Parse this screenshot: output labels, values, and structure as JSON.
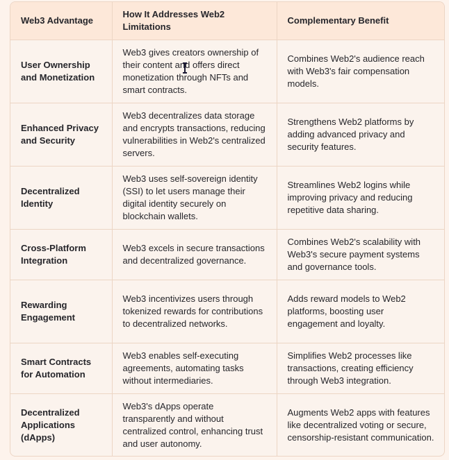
{
  "table": {
    "headers": [
      "Web3 Advantage",
      "How It Addresses Web2 Limitations",
      "Complementary Benefit"
    ],
    "rows": [
      {
        "advantage": "User Ownership and Monetization",
        "addresses": "Web3 gives creators ownership of their content and offers direct monetization through NFTs and smart contracts.",
        "benefit": "Combines Web2's audience reach with Web3's fair compensation models."
      },
      {
        "advantage": "Enhanced Privacy and Security",
        "addresses": "Web3 decentralizes data storage and encrypts transactions, reducing vulnerabilities in Web2's centralized servers.",
        "benefit": "Strengthens Web2 platforms by adding advanced privacy and security features."
      },
      {
        "advantage": "Decentralized Identity",
        "addresses": "Web3 uses self-sovereign identity (SSI) to let users manage their digital identity securely on blockchain wallets.",
        "benefit": "Streamlines Web2 logins while improving privacy and reducing repetitive data sharing."
      },
      {
        "advantage": "Cross-Platform Integration",
        "addresses": "Web3 excels in secure transactions and decentralized governance.",
        "benefit": "Combines Web2's scalability with Web3's secure payment systems and governance tools."
      },
      {
        "advantage": "Rewarding Engagement",
        "addresses": "Web3 incentivizes users through tokenized rewards for contributions to decentralized networks.",
        "benefit": "Adds reward models to Web2 platforms, boosting user engagement and loyalty."
      },
      {
        "advantage": "Smart Contracts for Automation",
        "addresses": "Web3 enables self-executing agreements, automating tasks without intermediaries.",
        "benefit": "Simplifies Web2 processes like transactions, creating efficiency through Web3 integration."
      },
      {
        "advantage": "Decentralized Applications (dApps)",
        "addresses": "Web3's dApps operate transparently and without centralized control, enhancing trust and user autonomy.",
        "benefit": "Augments Web2 apps with features like decentralized voting or secure, censorship-resistant communication."
      }
    ]
  },
  "colors": {
    "header_bg": "#fde8d9",
    "body_bg": "#fbf3ed",
    "border": "#ecd5c4",
    "text": "#26262b"
  },
  "cursor": {
    "icon": "text-cursor-icon"
  }
}
